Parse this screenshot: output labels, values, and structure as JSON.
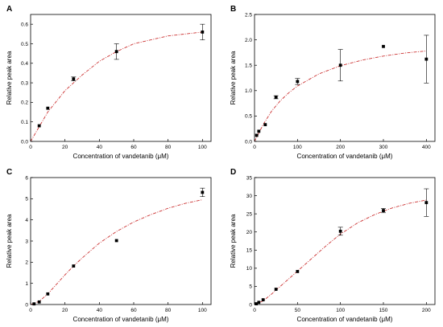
{
  "chart_data": [
    {
      "type": "scatter",
      "panel": "A",
      "xlabel": "Concentration of vandetanib (μM)",
      "ylabel": "Relative peak area",
      "xlim": [
        0,
        105
      ],
      "ylim": [
        0,
        0.65
      ],
      "xticks": [
        0,
        20,
        40,
        60,
        80,
        100
      ],
      "yticks": [
        0.0,
        0.1,
        0.2,
        0.3,
        0.4,
        0.5,
        0.6
      ],
      "ytick_labels": [
        "0.0",
        "0.1",
        "0.2",
        "0.3",
        "0.4",
        "0.5",
        "0.6"
      ],
      "points": [
        {
          "x": 5,
          "y": 0.08,
          "err": 0
        },
        {
          "x": 10,
          "y": 0.17,
          "err": 0
        },
        {
          "x": 25,
          "y": 0.32,
          "err": 0.01
        },
        {
          "x": 50,
          "y": 0.46,
          "err": 0.04
        },
        {
          "x": 100,
          "y": 0.56,
          "err": 0.04
        }
      ],
      "fit": {
        "x": [
          0,
          10,
          20,
          30,
          40,
          50,
          60,
          70,
          80,
          90,
          100
        ],
        "y": [
          0,
          0.15,
          0.26,
          0.34,
          0.41,
          0.46,
          0.5,
          0.52,
          0.54,
          0.55,
          0.56
        ]
      },
      "fit_color": "#cc3333",
      "marker_color": "#000000"
    },
    {
      "type": "scatter",
      "panel": "B",
      "xlabel": "Concentration of vandetanib (μM)",
      "ylabel": "Relative peak area",
      "xlim": [
        0,
        420
      ],
      "ylim": [
        0,
        2.5
      ],
      "xticks": [
        0,
        100,
        200,
        300,
        400
      ],
      "yticks": [
        0.0,
        0.5,
        1.0,
        1.5,
        2.0,
        2.5
      ],
      "ytick_labels": [
        "0.0",
        "0.5",
        "1.0",
        "1.5",
        "2.0",
        "2.5"
      ],
      "points": [
        {
          "x": 5,
          "y": 0.12,
          "err": 0
        },
        {
          "x": 10,
          "y": 0.2,
          "err": 0
        },
        {
          "x": 25,
          "y": 0.33,
          "err": 0
        },
        {
          "x": 50,
          "y": 0.87,
          "err": 0.03
        },
        {
          "x": 100,
          "y": 1.18,
          "err": 0.06
        },
        {
          "x": 200,
          "y": 1.5,
          "err": 0.31
        },
        {
          "x": 300,
          "y": 1.87,
          "err": 0
        },
        {
          "x": 400,
          "y": 1.62,
          "err": 0.47
        }
      ],
      "fit": {
        "x": [
          0,
          20,
          40,
          60,
          80,
          100,
          150,
          200,
          250,
          300,
          350,
          400
        ],
        "y": [
          0,
          0.33,
          0.6,
          0.8,
          0.96,
          1.09,
          1.33,
          1.49,
          1.6,
          1.68,
          1.74,
          1.78
        ]
      },
      "fit_color": "#cc3333",
      "marker_color": "#000000"
    },
    {
      "type": "scatter",
      "panel": "C",
      "xlabel": "Concentration of vandetanib (μM)",
      "ylabel": "Relative peak area",
      "xlim": [
        0,
        105
      ],
      "ylim": [
        0,
        6
      ],
      "xticks": [
        0,
        20,
        40,
        60,
        80,
        100
      ],
      "yticks": [
        0,
        1,
        2,
        3,
        4,
        5,
        6
      ],
      "ytick_labels": [
        "0",
        "1",
        "2",
        "3",
        "4",
        "5",
        "6"
      ],
      "points": [
        {
          "x": 2,
          "y": 0.03,
          "err": 0
        },
        {
          "x": 5,
          "y": 0.12,
          "err": 0
        },
        {
          "x": 10,
          "y": 0.5,
          "err": 0
        },
        {
          "x": 25,
          "y": 1.82,
          "err": 0
        },
        {
          "x": 50,
          "y": 3.02,
          "err": 0
        },
        {
          "x": 100,
          "y": 5.3,
          "err": 0.2
        }
      ],
      "fit": {
        "x": [
          0,
          5,
          10,
          15,
          20,
          25,
          30,
          40,
          50,
          60,
          70,
          80,
          90,
          100
        ],
        "y": [
          0,
          0.15,
          0.5,
          0.95,
          1.4,
          1.82,
          2.2,
          2.9,
          3.45,
          3.9,
          4.25,
          4.55,
          4.78,
          4.95
        ]
      },
      "fit_color": "#cc3333",
      "marker_color": "#000000"
    },
    {
      "type": "scatter",
      "panel": "D",
      "xlabel": "Concentration of vandetanib (μM)",
      "ylabel": "Relative peak area",
      "xlim": [
        0,
        210
      ],
      "ylim": [
        0,
        35
      ],
      "xticks": [
        0,
        50,
        100,
        150,
        200
      ],
      "yticks": [
        0,
        5,
        10,
        15,
        20,
        25,
        30,
        35
      ],
      "ytick_labels": [
        "0",
        "5",
        "10",
        "15",
        "20",
        "25",
        "30",
        "35"
      ],
      "points": [
        {
          "x": 2,
          "y": 0.2,
          "err": 0
        },
        {
          "x": 5,
          "y": 0.6,
          "err": 0
        },
        {
          "x": 10,
          "y": 1.3,
          "err": 0
        },
        {
          "x": 25,
          "y": 4.2,
          "err": 0
        },
        {
          "x": 50,
          "y": 9.1,
          "err": 0
        },
        {
          "x": 100,
          "y": 20.2,
          "err": 1.1
        },
        {
          "x": 150,
          "y": 25.9,
          "err": 0.6
        },
        {
          "x": 200,
          "y": 28.1,
          "err": 3.8
        }
      ],
      "fit": {
        "x": [
          0,
          10,
          20,
          30,
          40,
          50,
          60,
          70,
          80,
          90,
          100,
          120,
          140,
          160,
          180,
          200
        ],
        "y": [
          0,
          1.0,
          2.9,
          5.0,
          7.1,
          9.2,
          11.3,
          13.4,
          15.5,
          17.5,
          19.4,
          22.5,
          24.8,
          26.6,
          27.9,
          28.8
        ]
      },
      "fit_color": "#cc3333",
      "marker_color": "#000000"
    }
  ]
}
